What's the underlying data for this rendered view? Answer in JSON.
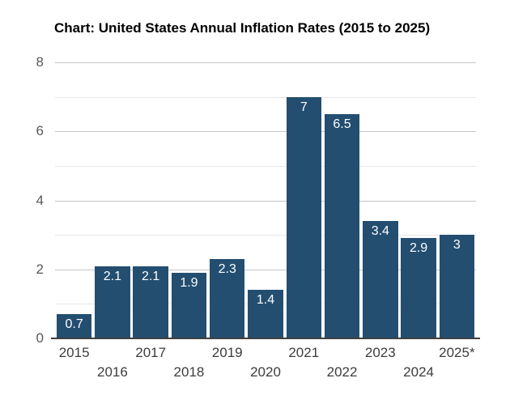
{
  "title": "Chart: United States Annual Inflation Rates (2015 to 2025)",
  "colors": {
    "background": "#ffffff",
    "bar": "#234e70",
    "value_label": "#ffffff",
    "title": "#000000",
    "axis_line": "#404040",
    "major_gridline": "#c6c6c6",
    "minor_gridline": "#e7e7e7",
    "y_label": "#595959",
    "x_label": "#3d3d3d"
  },
  "chart_data": {
    "type": "bar",
    "title": "Chart: United States Annual Inflation Rates (2015 to 2025)",
    "categories": [
      "2015",
      "2016",
      "2017",
      "2018",
      "2019",
      "2020",
      "2021",
      "2022",
      "2023",
      "2024",
      "2025*"
    ],
    "values": [
      0.7,
      2.1,
      2.1,
      1.9,
      2.3,
      1.4,
      7,
      6.5,
      3.4,
      2.9,
      3
    ],
    "value_labels": [
      "0.7",
      "2.1",
      "2.1",
      "1.9",
      "2.3",
      "1.4",
      "7",
      "6.5",
      "3.4",
      "2.9",
      "3"
    ],
    "xlabel": "",
    "ylabel": "",
    "ylim": [
      0,
      8
    ],
    "y_ticks": [
      0,
      2,
      4,
      6,
      8
    ],
    "minor_y_ticks": [
      1,
      3,
      5,
      7
    ],
    "grid": true,
    "legend": false,
    "bar_label_position": "inside-top",
    "x_label_stagger": true
  }
}
